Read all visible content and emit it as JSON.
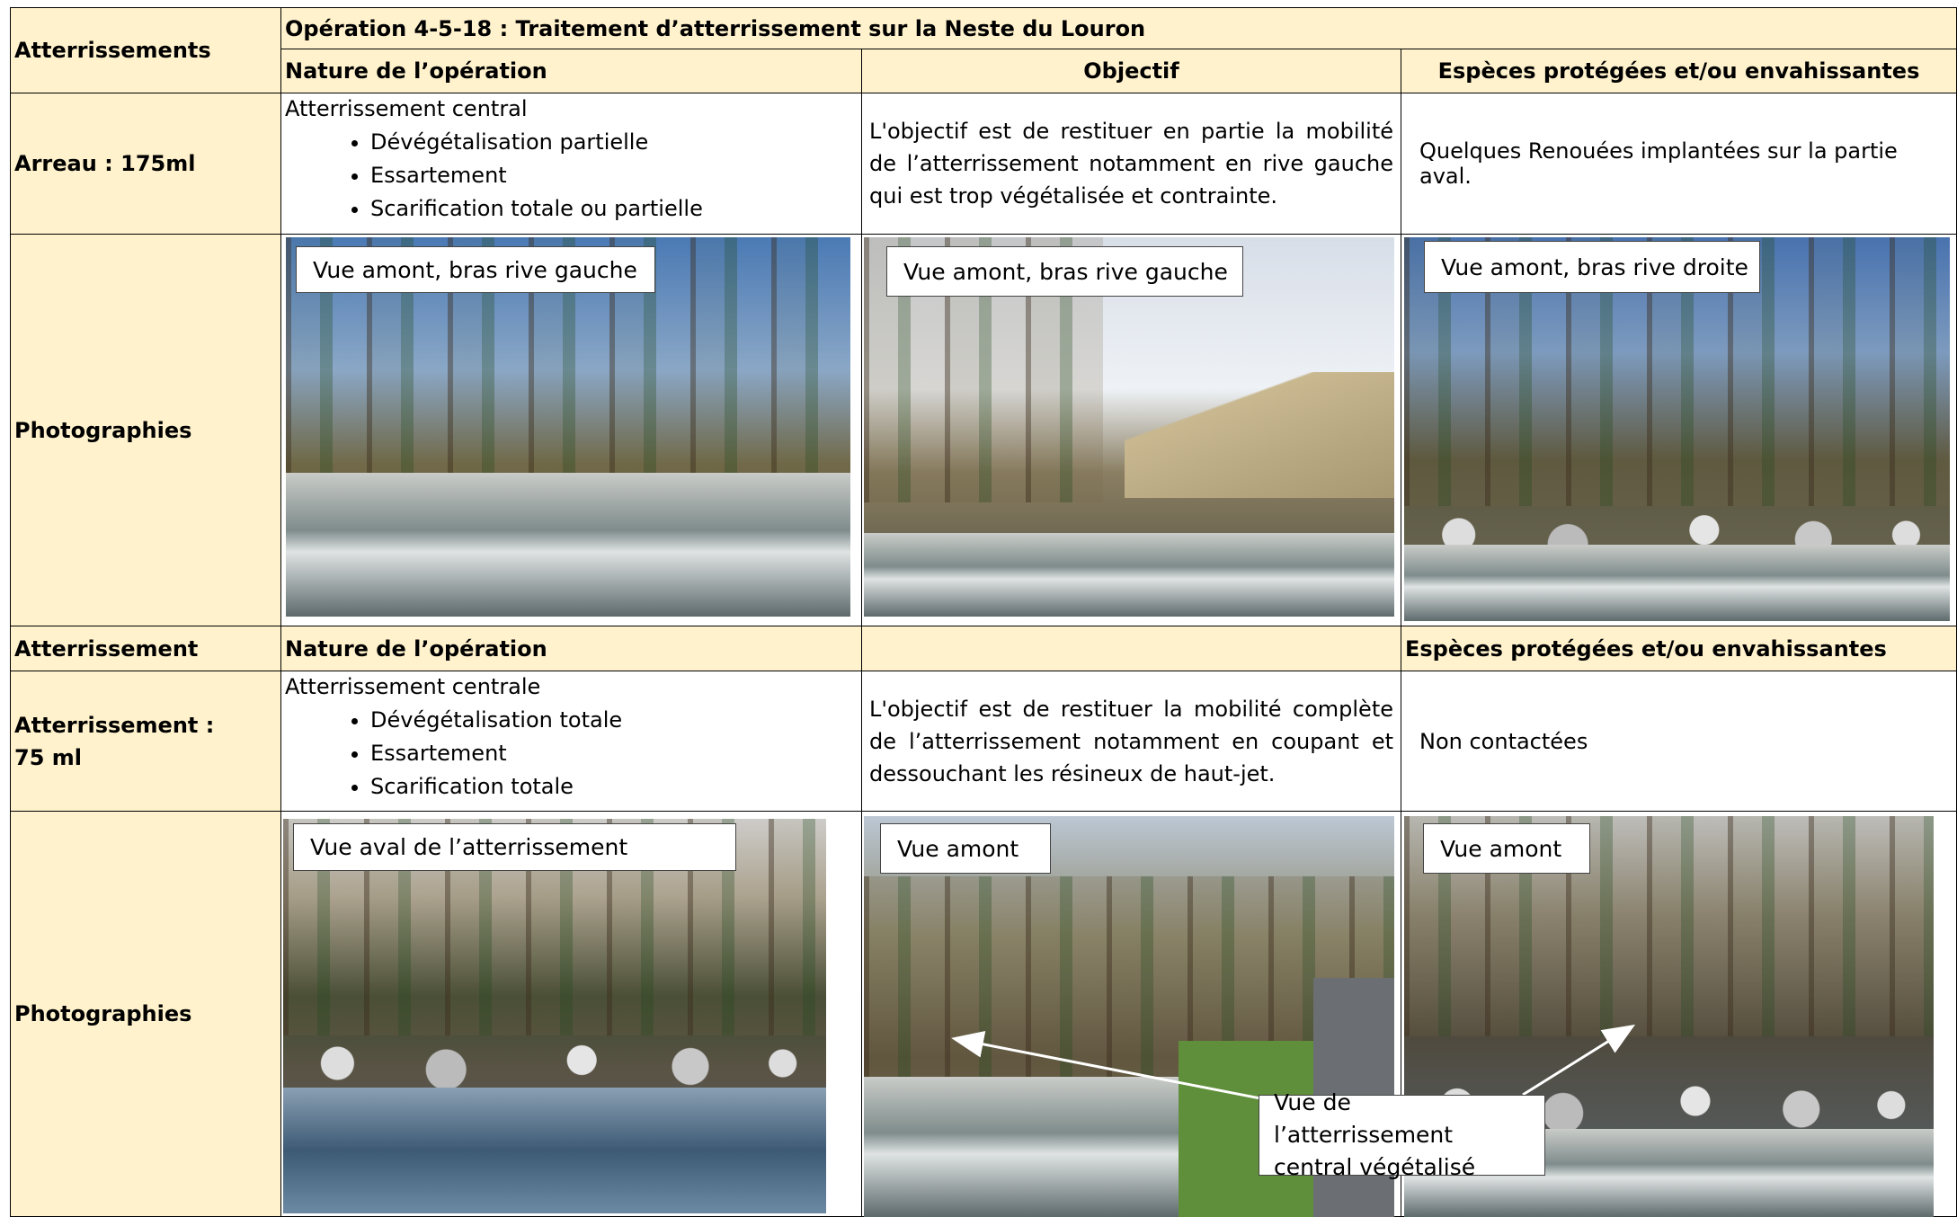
{
  "section_label": "Atterrissements",
  "operation_title": "Opération 4-5-18 : Traitement d’atterrissement sur la Neste du Louron",
  "header1": {
    "nature": "Nature de l’opération",
    "objectif": "Objectif",
    "especes": "Espèces protégées et/ou envahissantes"
  },
  "site1": {
    "label": "Arreau : 175ml",
    "nature_title": "Atterrissement central",
    "nature_items": [
      "Dévégétalisation partielle",
      "Essartement",
      "Scarification totale ou partielle"
    ],
    "objectif": "L'objectif est de restituer en partie la mobilité de l’atterrissement notamment en rive gauche qui est trop végétalisée et contrainte.",
    "especes": "Quelques Renouées implantées sur la partie aval."
  },
  "photos1": {
    "label": "Photographies",
    "captions": [
      "Vue amont, bras rive gauche",
      "Vue amont, bras rive gauche",
      "Vue amont, bras rive droite"
    ]
  },
  "header2": {
    "label": "Atterrissement",
    "nature": "Nature de l’opération",
    "especes": "Espèces protégées et/ou envahissantes"
  },
  "site2": {
    "label_lines": [
      "Atterrissement :",
      "75 ml"
    ],
    "nature_title": "Atterrissement centrale",
    "nature_items": [
      "Dévégétalisation totale",
      "Essartement",
      "Scarification totale"
    ],
    "objectif": "L'objectif est de restituer la mobilité complète de l’atterrissement notamment en coupant et dessouchant les résineux de haut-jet.",
    "especes": "Non contactées"
  },
  "photos2": {
    "label": "Photographies",
    "captions": [
      "Vue aval de l’atterrissement",
      "Vue amont",
      "Vue amont"
    ],
    "annotation": "Vue de l’atterrissement central végétalisé"
  }
}
